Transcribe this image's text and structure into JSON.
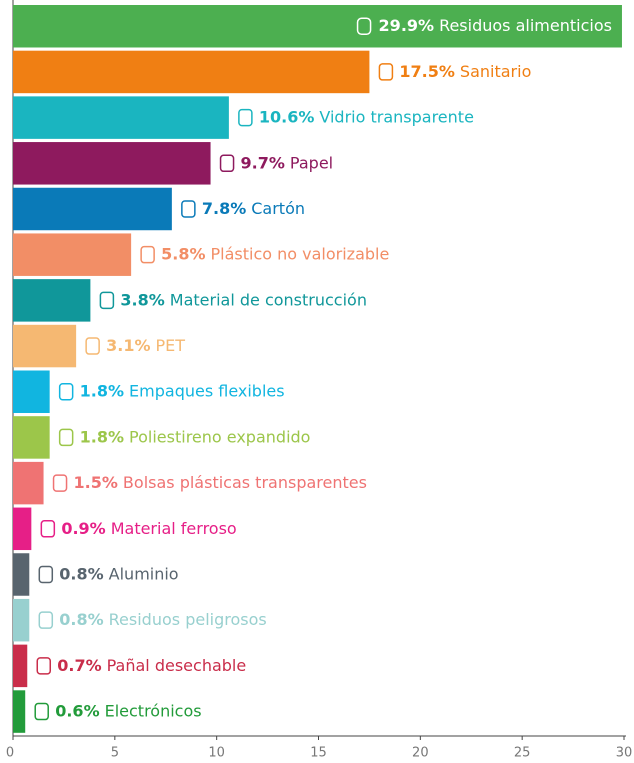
{
  "chart_data": {
    "type": "bar",
    "orientation": "horizontal",
    "categories": [
      "Residuos alimenticios",
      "Sanitario",
      "Vidrio transparente",
      "Papel",
      "Cartón",
      "Plástico no valorizable",
      "Material de construcción",
      "PET",
      "Empaques flexibles",
      "Poliestireno expandido",
      "Bolsas plásticas transparentes",
      "Material ferroso",
      "Aluminio",
      "Residuos peligrosos",
      "Pañal desechable",
      "Electrónicos"
    ],
    "values": [
      29.9,
      17.5,
      10.6,
      9.7,
      7.8,
      5.8,
      3.8,
      3.1,
      1.8,
      1.8,
      1.5,
      0.9,
      0.8,
      0.8,
      0.7,
      0.6
    ],
    "value_labels": [
      "29.9%",
      "17.5%",
      "10.6%",
      "9.7%",
      "7.8%",
      "5.8%",
      "3.8%",
      "3.1%",
      "1.8%",
      "1.8%",
      "1.5%",
      "0.9%",
      "0.8%",
      "0.8%",
      "0.7%",
      "0.6%"
    ],
    "colors": [
      "#4caf50",
      "#f07f13",
      "#1ab5c0",
      "#8e1a5e",
      "#0a7ab8",
      "#f28e66",
      "#10979a",
      "#f5b872",
      "#11b5e0",
      "#9cc64a",
      "#ef7373",
      "#e61f87",
      "#58646e",
      "#98d0cf",
      "#c92d4a",
      "#229b3a"
    ],
    "xlim": [
      0,
      30
    ],
    "xticks": [
      0,
      5,
      10,
      15,
      20,
      25,
      30
    ]
  }
}
